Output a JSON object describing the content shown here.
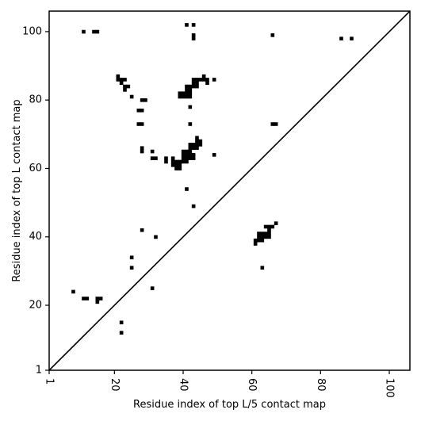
{
  "chart_data": {
    "type": "scatter",
    "xlabel": "Residue index of top L/5 contact map",
    "ylabel": "Residue index of top L contact map",
    "xlim": [
      1,
      106
    ],
    "ylim": [
      1,
      106
    ],
    "x_ticks": [
      1,
      20,
      40,
      60,
      80,
      100
    ],
    "y_ticks": [
      1,
      20,
      40,
      60,
      80,
      100
    ],
    "x_tick_labels": [
      "1",
      "20",
      "40",
      "60",
      "80",
      "100"
    ],
    "y_tick_labels": [
      "1",
      "20",
      "40",
      "60",
      "80",
      "100"
    ],
    "x_tick_rotation_deg": 90,
    "diagonal": true,
    "grid": false,
    "marker_color": "#000000",
    "top_l_contacts": [
      [
        8,
        24
      ],
      [
        11,
        22
      ],
      [
        12,
        22
      ],
      [
        15,
        21
      ],
      [
        15,
        22
      ],
      [
        16,
        22
      ],
      [
        22,
        15
      ],
      [
        22,
        12
      ],
      [
        25,
        34
      ],
      [
        25,
        31
      ],
      [
        28,
        42
      ],
      [
        31,
        25
      ],
      [
        32,
        40
      ],
      [
        21,
        87
      ],
      [
        21,
        86
      ],
      [
        22,
        86
      ],
      [
        22,
        85
      ],
      [
        23,
        86
      ],
      [
        23,
        84
      ],
      [
        24,
        84
      ],
      [
        23,
        83
      ],
      [
        25,
        81
      ],
      [
        27,
        77
      ],
      [
        28,
        77
      ],
      [
        28,
        80
      ],
      [
        29,
        80
      ],
      [
        27,
        73
      ],
      [
        28,
        73
      ],
      [
        28,
        66
      ],
      [
        28,
        65
      ],
      [
        31,
        65
      ],
      [
        31,
        63
      ],
      [
        32,
        63
      ],
      [
        35,
        63
      ],
      [
        35,
        62
      ],
      [
        37,
        63
      ],
      [
        37,
        62
      ],
      [
        37,
        61
      ],
      [
        38,
        62
      ],
      [
        38,
        61
      ],
      [
        38,
        60
      ],
      [
        39,
        62
      ],
      [
        39,
        61
      ],
      [
        39,
        60
      ],
      [
        40,
        65
      ],
      [
        41,
        65
      ],
      [
        42,
        65
      ],
      [
        40,
        64
      ],
      [
        41,
        64
      ],
      [
        42,
        64
      ],
      [
        43,
        64
      ],
      [
        40,
        63
      ],
      [
        41,
        63
      ],
      [
        42,
        63
      ],
      [
        43,
        63
      ],
      [
        40,
        62
      ],
      [
        41,
        62
      ],
      [
        42,
        67
      ],
      [
        43,
        67
      ],
      [
        44,
        67
      ],
      [
        42,
        66
      ],
      [
        43,
        66
      ],
      [
        44,
        66
      ],
      [
        44,
        68
      ],
      [
        45,
        68
      ],
      [
        44,
        69
      ],
      [
        45,
        67
      ],
      [
        41,
        54
      ],
      [
        43,
        49
      ],
      [
        49,
        64
      ],
      [
        42,
        73
      ],
      [
        42,
        78
      ],
      [
        39,
        82
      ],
      [
        40,
        82
      ],
      [
        41,
        82
      ],
      [
        42,
        82
      ],
      [
        39,
        81
      ],
      [
        40,
        81
      ],
      [
        41,
        81
      ],
      [
        42,
        81
      ],
      [
        41,
        84
      ],
      [
        42,
        84
      ],
      [
        41,
        83
      ],
      [
        42,
        83
      ],
      [
        43,
        86
      ],
      [
        44,
        86
      ],
      [
        45,
        86
      ],
      [
        43,
        85
      ],
      [
        44,
        85
      ],
      [
        43,
        84
      ],
      [
        44,
        84
      ],
      [
        46,
        87
      ],
      [
        46,
        86
      ],
      [
        47,
        86
      ],
      [
        47,
        85
      ],
      [
        49,
        86
      ],
      [
        41,
        102
      ],
      [
        43,
        102
      ],
      [
        43,
        99
      ],
      [
        43,
        98
      ],
      [
        61,
        39
      ],
      [
        61,
        38
      ],
      [
        62,
        41
      ],
      [
        63,
        41
      ],
      [
        64,
        41
      ],
      [
        62,
        40
      ],
      [
        63,
        40
      ],
      [
        64,
        40
      ],
      [
        65,
        40
      ],
      [
        62,
        39
      ],
      [
        63,
        39
      ],
      [
        65,
        41
      ],
      [
        65,
        42
      ],
      [
        64,
        43
      ],
      [
        65,
        43
      ],
      [
        66,
        43
      ],
      [
        67,
        44
      ],
      [
        63,
        31
      ],
      [
        66,
        99
      ],
      [
        66,
        73
      ],
      [
        67,
        73
      ],
      [
        11,
        100
      ],
      [
        14,
        100
      ],
      [
        15,
        100
      ],
      [
        86,
        98
      ],
      [
        89,
        98
      ]
    ]
  }
}
